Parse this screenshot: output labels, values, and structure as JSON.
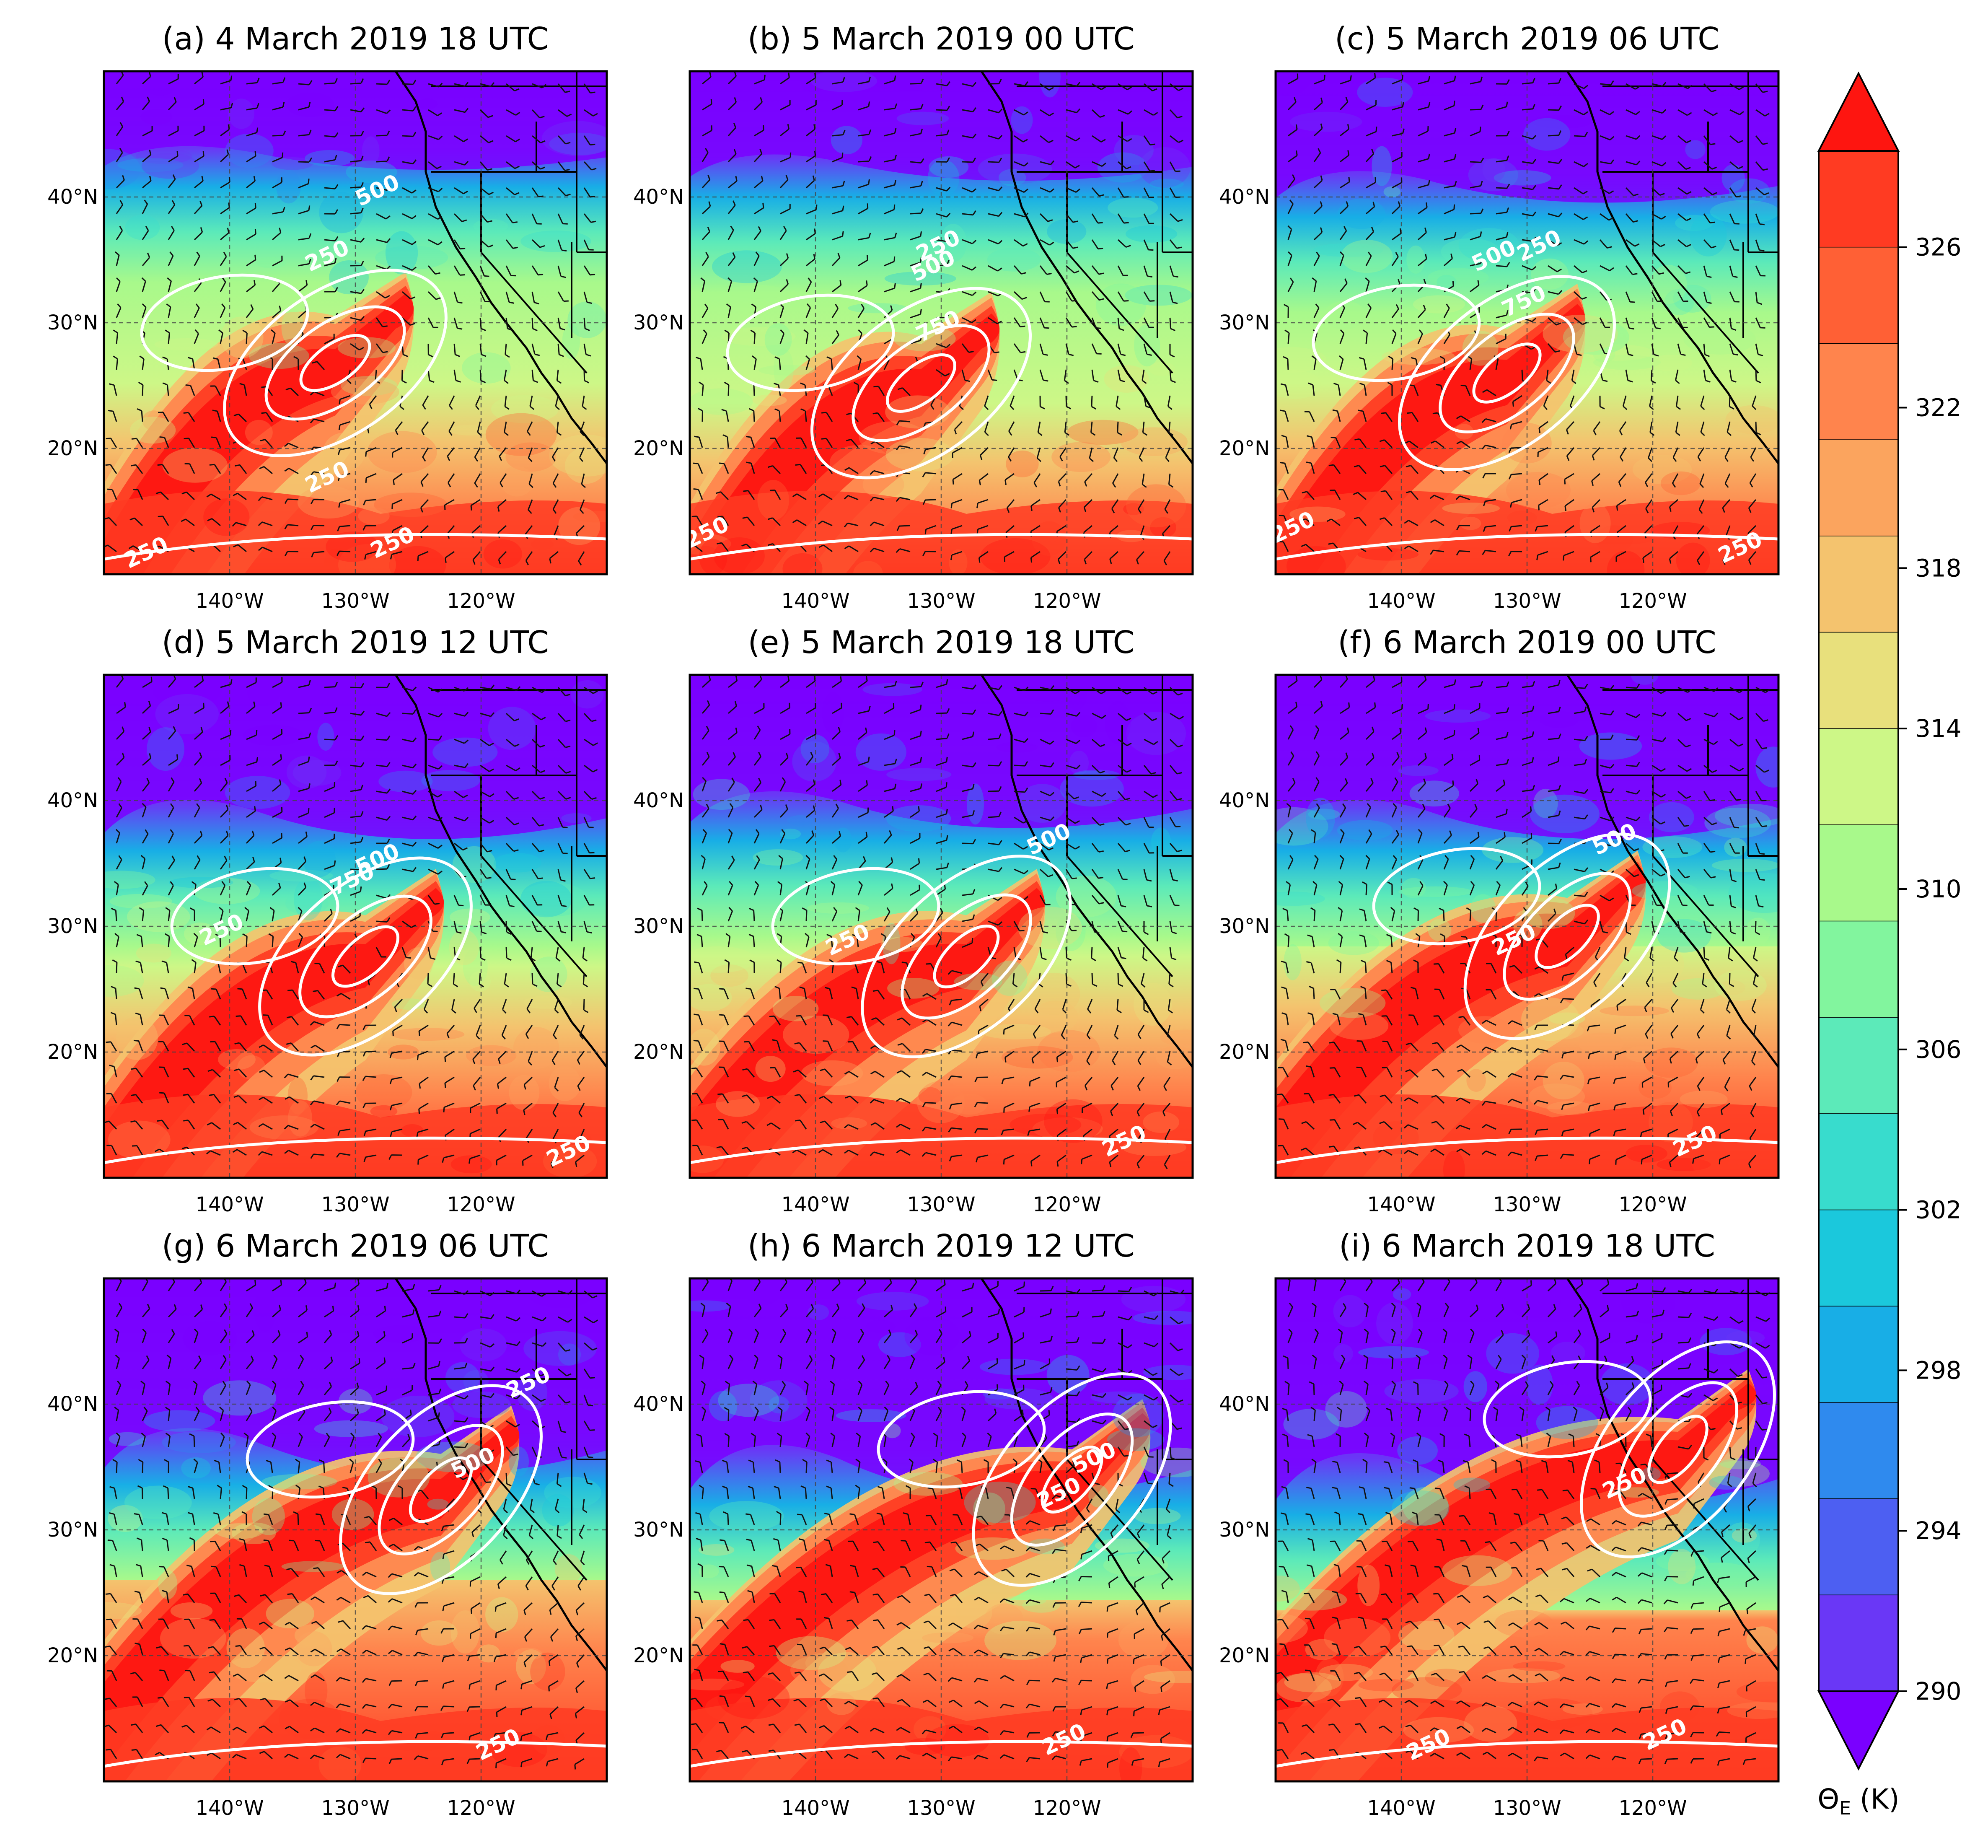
{
  "figure": {
    "panels": [
      {
        "id": "a",
        "title": "(a) 4 March 2019 18 UTC",
        "contour_labels": [
          "250",
          "500",
          "250",
          "250",
          "250"
        ]
      },
      {
        "id": "b",
        "title": "(b) 5 March 2019 00 UTC",
        "contour_labels": [
          "250",
          "500",
          "750",
          "250"
        ]
      },
      {
        "id": "c",
        "title": "(c) 5 March 2019 06 UTC",
        "contour_labels": [
          "250",
          "500",
          "750",
          "250",
          "250"
        ]
      },
      {
        "id": "d",
        "title": "(d) 5 March 2019 12 UTC",
        "contour_labels": [
          "500",
          "750",
          "250",
          "250"
        ]
      },
      {
        "id": "e",
        "title": "(e) 5 March 2019 18 UTC",
        "contour_labels": [
          "500",
          "250",
          "250"
        ]
      },
      {
        "id": "f",
        "title": "(f) 6 March 2019 00 UTC",
        "contour_labels": [
          "500",
          "250",
          "250"
        ]
      },
      {
        "id": "g",
        "title": "(g) 6 March 2019 06 UTC",
        "contour_labels": [
          "500",
          "250",
          "250"
        ]
      },
      {
        "id": "h",
        "title": "(h) 6 March 2019 12 UTC",
        "contour_labels": [
          "500",
          "250",
          "250"
        ]
      },
      {
        "id": "i",
        "title": "(i) 6 March 2019 18 UTC",
        "contour_labels": [
          "250",
          "250",
          "250"
        ]
      }
    ],
    "lat_ticks": [
      "40°N",
      "30°N",
      "20°N"
    ],
    "lon_ticks": [
      "140°W",
      "130°W",
      "120°W"
    ],
    "colorbar": {
      "title": "ΘE (K)",
      "title_base": "Θ",
      "title_sub": "E",
      "title_unit": " (K)",
      "tick_labels": [
        "326",
        "322",
        "318",
        "314",
        "310",
        "306",
        "302",
        "298",
        "294",
        "290"
      ],
      "colors": [
        "#7a00ff",
        "#6a37f6",
        "#4d5ff2",
        "#2f8aee",
        "#18aee6",
        "#1bc8dc",
        "#38dccd",
        "#5ceab9",
        "#82f59e",
        "#a8f98b",
        "#cdf787",
        "#e8e07c",
        "#f4c36e",
        "#fba45e",
        "#ff844d",
        "#ff6035",
        "#ff3b22",
        "#fe1510"
      ]
    },
    "colors": {
      "contour": "#ffffff",
      "coast": "#000000",
      "grid": "#444444",
      "barb": "#111111"
    }
  }
}
